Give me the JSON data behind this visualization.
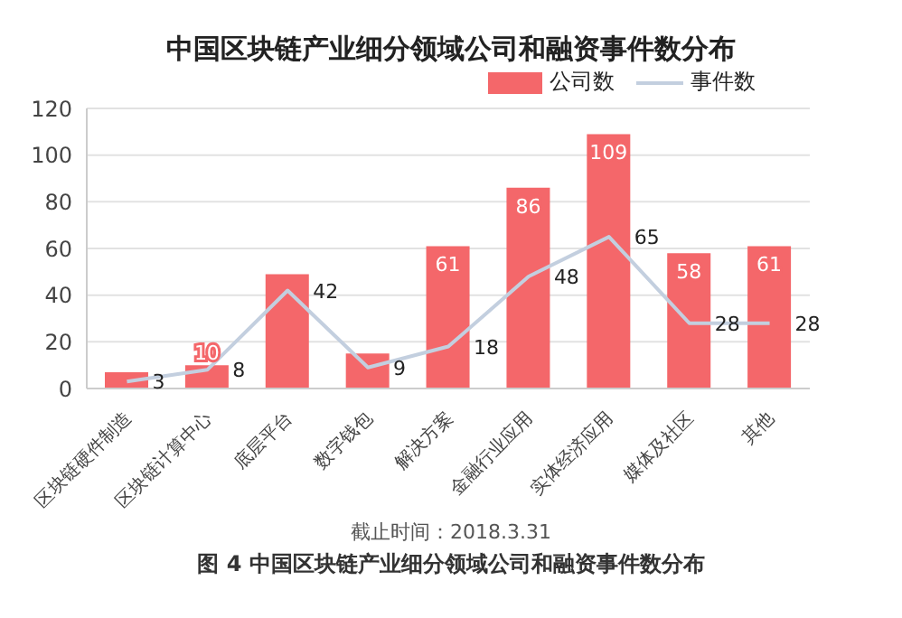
{
  "chart_data": {
    "type": "bar",
    "title": "中国区块链产业细分领域公司和融资事件数分布",
    "categories": [
      "区块链硬件制造",
      "区块链计算中心",
      "底层平台",
      "数字钱包",
      "解决方案",
      "金融行业应用",
      "实体经济应用",
      "媒体及社区",
      "其他"
    ],
    "series": [
      {
        "name": "公司数",
        "color": "#f4676a",
        "values": [
          7,
          10,
          49,
          15,
          61,
          86,
          109,
          58,
          61
        ],
        "value_labels": [
          null,
          "10",
          null,
          null,
          "61",
          "86",
          "109",
          "58",
          "61"
        ]
      },
      {
        "name": "事件数",
        "type": "line",
        "color": "#c3cfdf",
        "values": [
          3,
          8,
          42,
          9,
          18,
          48,
          65,
          28,
          28
        ],
        "value_labels": [
          "3",
          "8",
          "42",
          "9",
          "18",
          "48",
          "65",
          "28",
          "28"
        ]
      }
    ],
    "ylim": [
      0,
      120
    ],
    "yticks": [
      0,
      20,
      40,
      60,
      80,
      100,
      120
    ],
    "grid": "y",
    "legend": "top right",
    "marker": "none",
    "annotations": [
      "截止时间：2018.3.31",
      "图 4 中国区块链产业细分领域公司和融资事件数分布"
    ]
  }
}
